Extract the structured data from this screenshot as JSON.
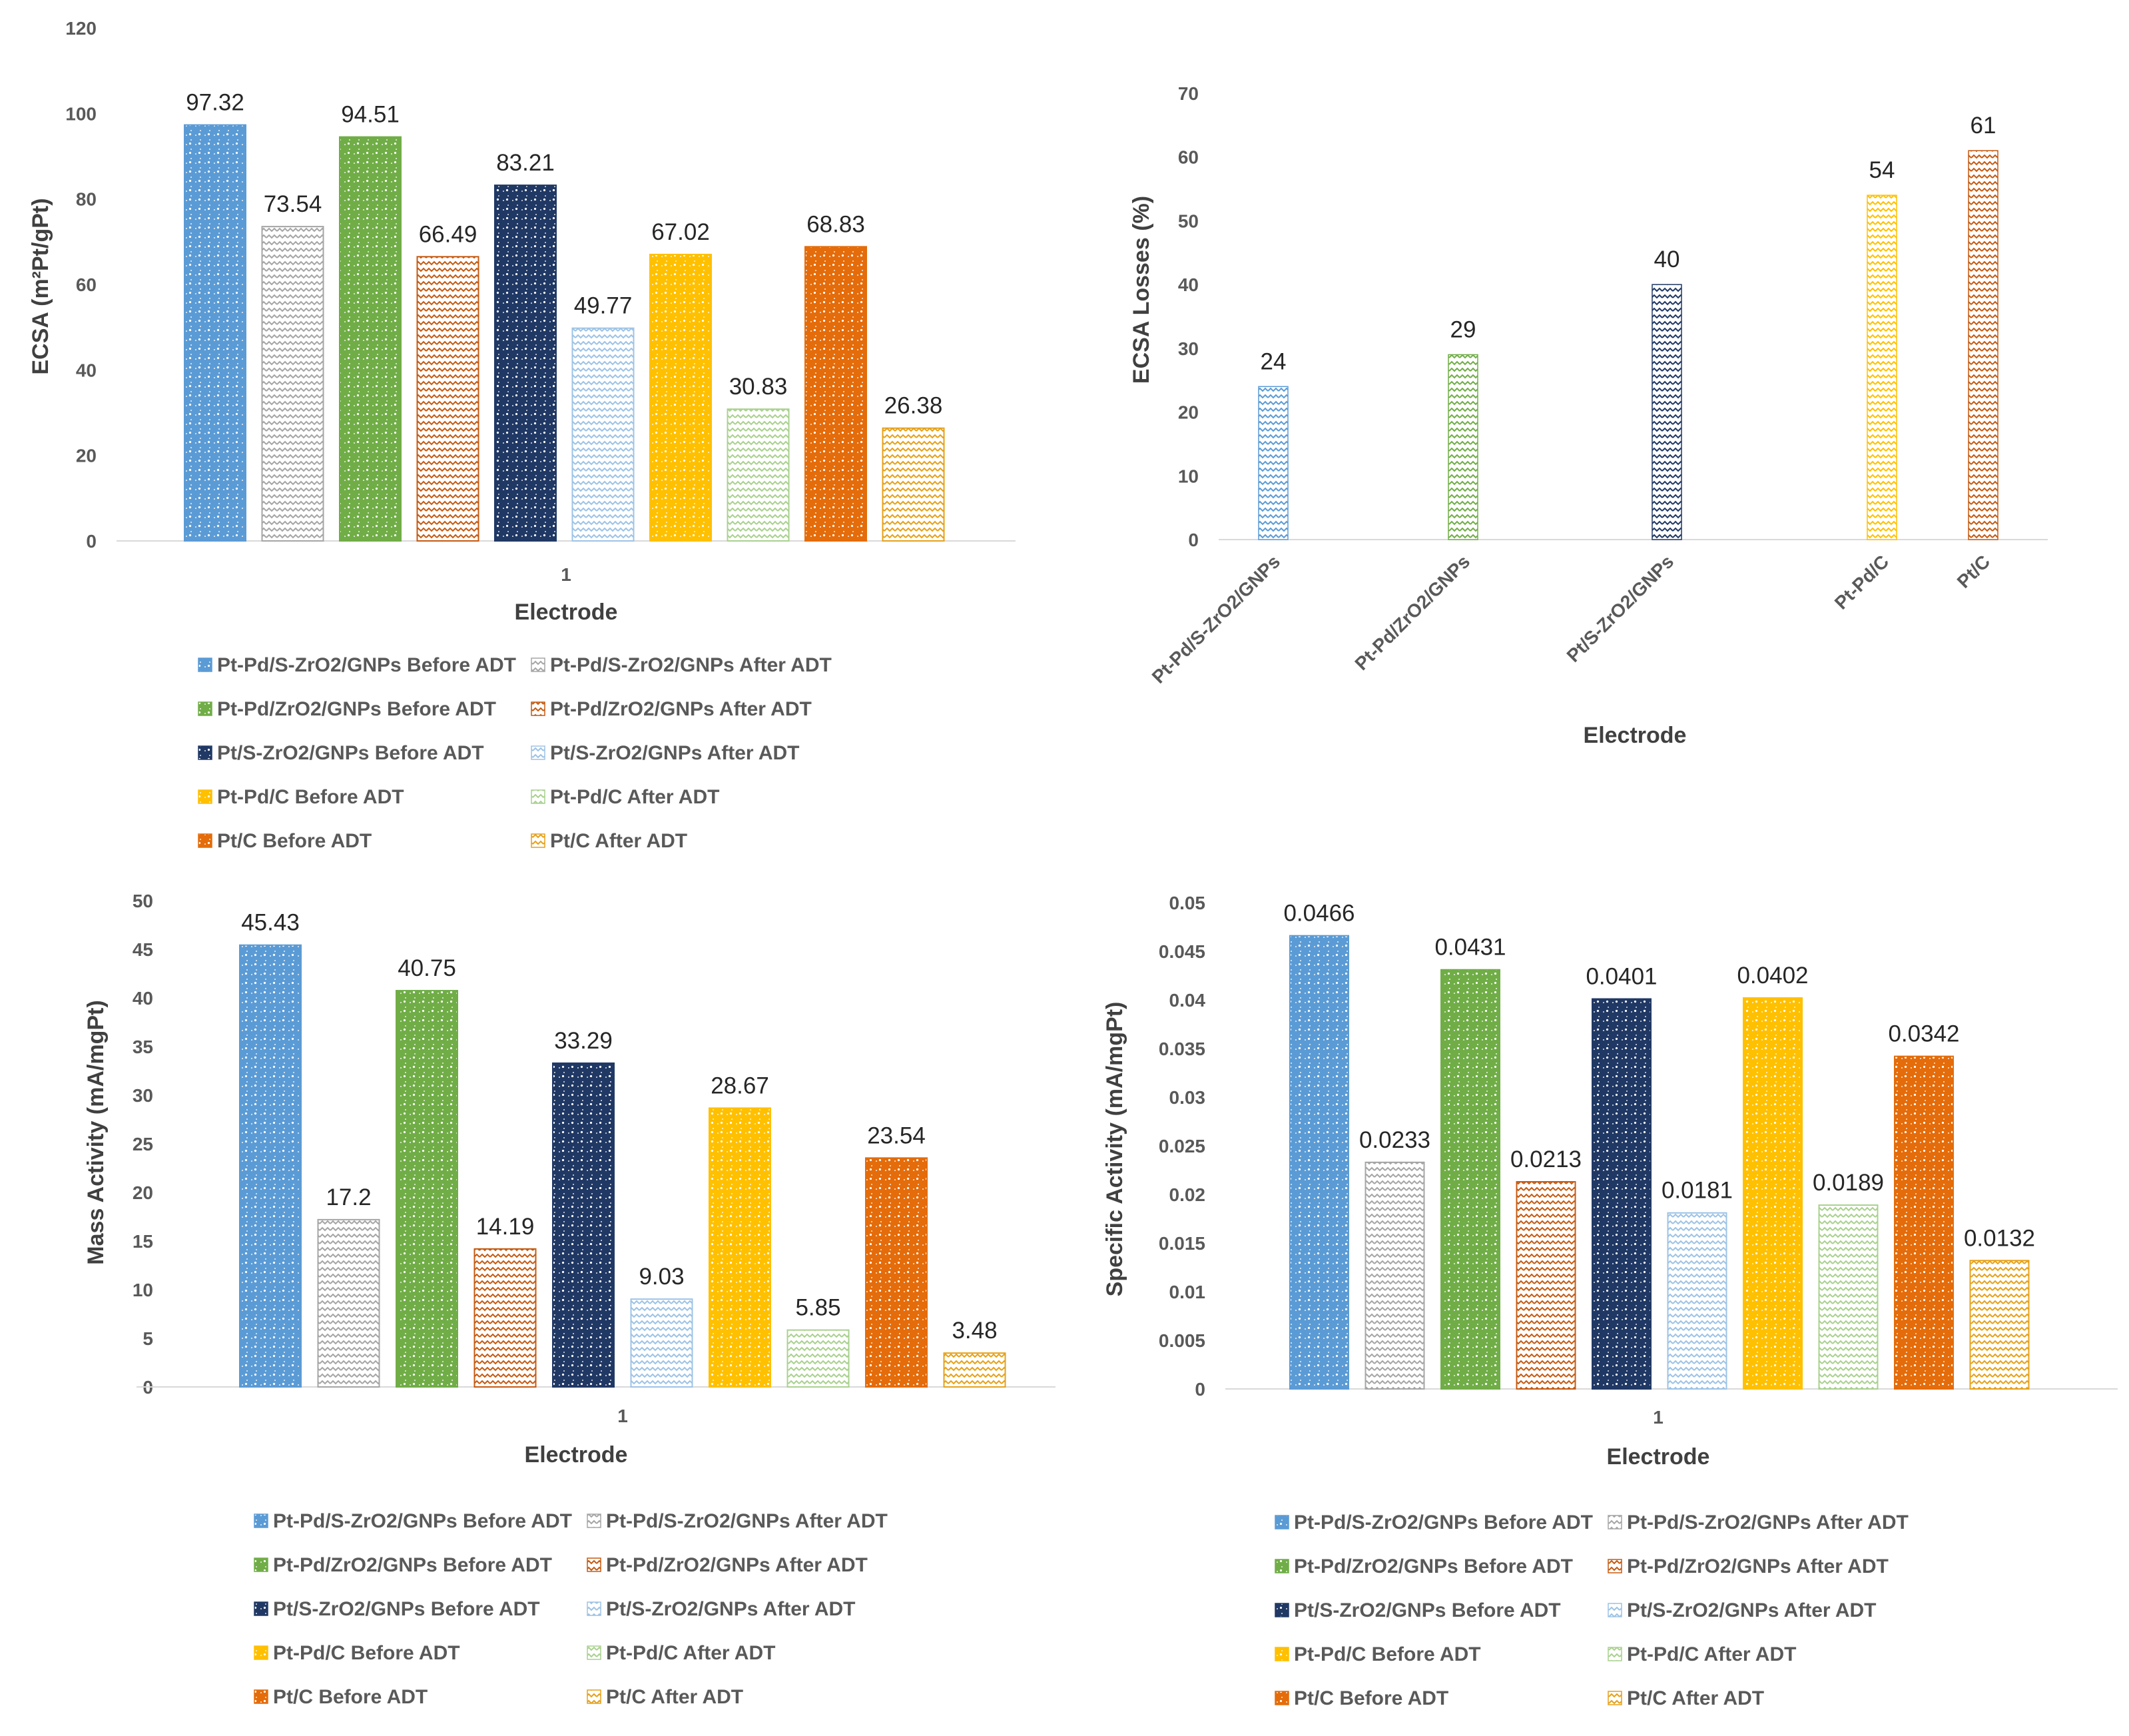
{
  "series_colors": [
    "#5b9bd5",
    "#a5a5a5",
    "#70ad47",
    "#c55a11",
    "#203864",
    "#9dc3e6",
    "#ffc000",
    "#a9d18e",
    "#e46c0a",
    "#e6a118"
  ],
  "chart_data": [
    {
      "type": "bar",
      "title": "",
      "xlabel": "Electrode",
      "ylabel": "ECSA (m²Pt/gPt)",
      "categories": [
        "1"
      ],
      "ylim": [
        0,
        120
      ],
      "yticks": [
        "0",
        "20",
        "40",
        "60",
        "80",
        "100",
        "120"
      ],
      "legend_position": "bottom",
      "series": [
        {
          "name": "Pt-Pd/S-ZrO2/GNPs Before ADT",
          "values": [
            97.32
          ],
          "label": "97.32"
        },
        {
          "name": "Pt-Pd/S-ZrO2/GNPs After ADT",
          "values": [
            73.54
          ],
          "label": "73.54"
        },
        {
          "name": "Pt-Pd/ZrO2/GNPs Before ADT",
          "values": [
            94.51
          ],
          "label": "94.51"
        },
        {
          "name": "Pt-Pd/ZrO2/GNPs After ADT",
          "values": [
            66.49
          ],
          "label": "66.49"
        },
        {
          "name": "Pt/S-ZrO2/GNPs Before ADT",
          "values": [
            83.21
          ],
          "label": "83.21"
        },
        {
          "name": "Pt/S-ZrO2/GNPs After ADT",
          "values": [
            49.77
          ],
          "label": "49.77"
        },
        {
          "name": "Pt-Pd/C Before ADT",
          "values": [
            67.02
          ],
          "label": "67.02"
        },
        {
          "name": "Pt-Pd/C After ADT",
          "values": [
            30.83
          ],
          "label": "30.83"
        },
        {
          "name": "Pt/C Before ADT",
          "values": [
            68.83
          ],
          "label": "68.83"
        },
        {
          "name": "Pt/C After ADT",
          "values": [
            26.38
          ],
          "label": "26.38"
        }
      ]
    },
    {
      "type": "bar",
      "title": "",
      "xlabel": "Electrode",
      "ylabel": "ECSA Losses (%)",
      "categories": [
        "Pt-Pd/S-ZrO2/GNPs",
        "Pt-Pd/ZrO2/GNPs",
        "Pt/S-ZrO2/GNPs",
        "Pt-Pd/C",
        "Pt/C"
      ],
      "ylim": [
        0,
        70
      ],
      "yticks": [
        "0",
        "10",
        "20",
        "30",
        "40",
        "50",
        "60",
        "70"
      ],
      "values": [
        24,
        29,
        40,
        54,
        61
      ],
      "labels": [
        "24",
        "29",
        "40",
        "54",
        "61"
      ]
    },
    {
      "type": "bar",
      "title": "",
      "xlabel": "Electrode",
      "ylabel": "Mass Activity (mA/mgPt)",
      "categories": [
        "1"
      ],
      "ylim": [
        0,
        50
      ],
      "yticks": [
        "0",
        "5",
        "10",
        "15",
        "20",
        "25",
        "30",
        "35",
        "40",
        "45",
        "50"
      ],
      "legend_position": "bottom",
      "series": [
        {
          "name": "Pt-Pd/S-ZrO2/GNPs Before ADT",
          "values": [
            45.43
          ],
          "label": "45.43"
        },
        {
          "name": "Pt-Pd/S-ZrO2/GNPs After ADT",
          "values": [
            17.2
          ],
          "label": "17.2"
        },
        {
          "name": "Pt-Pd/ZrO2/GNPs Before ADT",
          "values": [
            40.75
          ],
          "label": "40.75"
        },
        {
          "name": "Pt-Pd/ZrO2/GNPs After ADT",
          "values": [
            14.19
          ],
          "label": "14.19"
        },
        {
          "name": "Pt/S-ZrO2/GNPs Before ADT",
          "values": [
            33.29
          ],
          "label": "33.29"
        },
        {
          "name": "Pt/S-ZrO2/GNPs After ADT",
          "values": [
            9.03
          ],
          "label": "9.03"
        },
        {
          "name": "Pt-Pd/C Before ADT",
          "values": [
            28.67
          ],
          "label": "28.67"
        },
        {
          "name": "Pt-Pd/C After ADT",
          "values": [
            5.85
          ],
          "label": "5.85"
        },
        {
          "name": "Pt/C Before ADT",
          "values": [
            23.54
          ],
          "label": "23.54"
        },
        {
          "name": "Pt/C After ADT",
          "values": [
            3.48
          ],
          "label": "3.48"
        }
      ]
    },
    {
      "type": "bar",
      "title": "",
      "xlabel": "Electrode",
      "ylabel": "Specific Activity (mA/mgPt)",
      "categories": [
        "1"
      ],
      "ylim": [
        0,
        0.05
      ],
      "yticks": [
        "0",
        "0.005",
        "0.01",
        "0.015",
        "0.02",
        "0.025",
        "0.03",
        "0.035",
        "0.04",
        "0.045",
        "0.05"
      ],
      "legend_position": "bottom",
      "series": [
        {
          "name": "Pt-Pd/S-ZrO2/GNPs Before ADT",
          "values": [
            0.0466
          ],
          "label": "0.0466"
        },
        {
          "name": "Pt-Pd/S-ZrO2/GNPs After ADT",
          "values": [
            0.0233
          ],
          "label": "0.0233"
        },
        {
          "name": "Pt-Pd/ZrO2/GNPs Before ADT",
          "values": [
            0.0431
          ],
          "label": "0.0431"
        },
        {
          "name": "Pt-Pd/ZrO2/GNPs After ADT",
          "values": [
            0.0213
          ],
          "label": "0.0213"
        },
        {
          "name": "Pt/S-ZrO2/GNPs Before ADT",
          "values": [
            0.0401
          ],
          "label": "0.0401"
        },
        {
          "name": "Pt/S-ZrO2/GNPs After ADT",
          "values": [
            0.0181
          ],
          "label": "0.0181"
        },
        {
          "name": "Pt-Pd/C Before ADT",
          "values": [
            0.0402
          ],
          "label": "0.0402"
        },
        {
          "name": "Pt-Pd/C After ADT",
          "values": [
            0.0189
          ],
          "label": "0.0189"
        },
        {
          "name": "Pt/C Before ADT",
          "values": [
            0.0342
          ],
          "label": "0.0342"
        },
        {
          "name": "Pt/C After ADT",
          "values": [
            0.0132
          ],
          "label": "0.0132"
        }
      ]
    }
  ],
  "series_colors_single": [
    "#5b9bd5",
    "#70ad47",
    "#203864",
    "#ffc000",
    "#c55a11"
  ]
}
